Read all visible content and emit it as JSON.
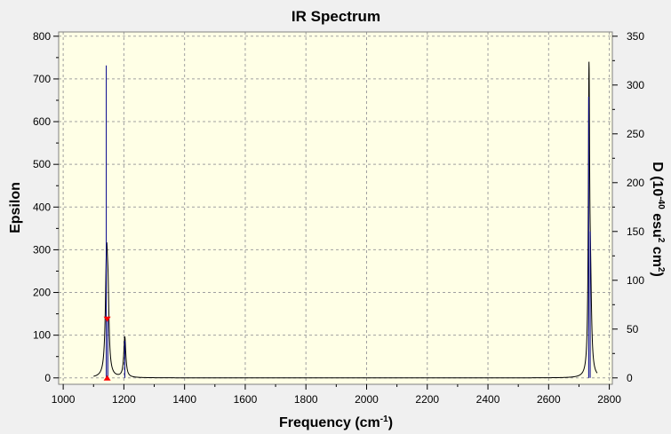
{
  "chart_data": {
    "type": "line",
    "title": "IR Spectrum",
    "xlabel": "Frequency (cm",
    "xlabel_sup": "-1",
    "xlabel_end": ")",
    "ylabel": "Epsilon",
    "y2label_parts": [
      "D (10",
      "-40",
      " esu",
      "2",
      " cm",
      "2",
      ")"
    ],
    "xlim": [
      985,
      2810
    ],
    "ylim": [
      -15,
      810
    ],
    "y2lim": [
      -6.5625,
      354.375
    ],
    "xticks": [
      1000,
      1200,
      1400,
      1600,
      1800,
      2000,
      2200,
      2400,
      2600,
      2800
    ],
    "yticks": [
      0,
      100,
      200,
      300,
      400,
      500,
      600,
      700,
      800
    ],
    "y2ticks": [
      0,
      50,
      100,
      150,
      200,
      250,
      300,
      350
    ],
    "grid": true,
    "background": "#ffffe6",
    "spectrum_color": "#000000",
    "stick_color": "#00008b",
    "marker_color": "#ff0000",
    "marker_x": 1145,
    "series": [
      {
        "kind": "epsilon-curve",
        "peaks": [
          {
            "x": 1143,
            "y": 275,
            "w": 9
          },
          {
            "x": 1148,
            "y": 120,
            "w": 7
          },
          {
            "x": 1203,
            "y": 95,
            "w": 8
          },
          {
            "x": 2733,
            "y": 670,
            "w": 5
          },
          {
            "x": 2738,
            "y": 180,
            "w": 8
          }
        ],
        "curve_range": [
          1100,
          2760
        ]
      },
      {
        "kind": "intensity-sticks",
        "sticks": [
          {
            "x": 1142,
            "d": 320
          },
          {
            "x": 1147,
            "d": 60
          },
          {
            "x": 1203,
            "d": 38
          },
          {
            "x": 2732,
            "d": 288
          },
          {
            "x": 2737,
            "d": 150
          }
        ]
      }
    ]
  }
}
